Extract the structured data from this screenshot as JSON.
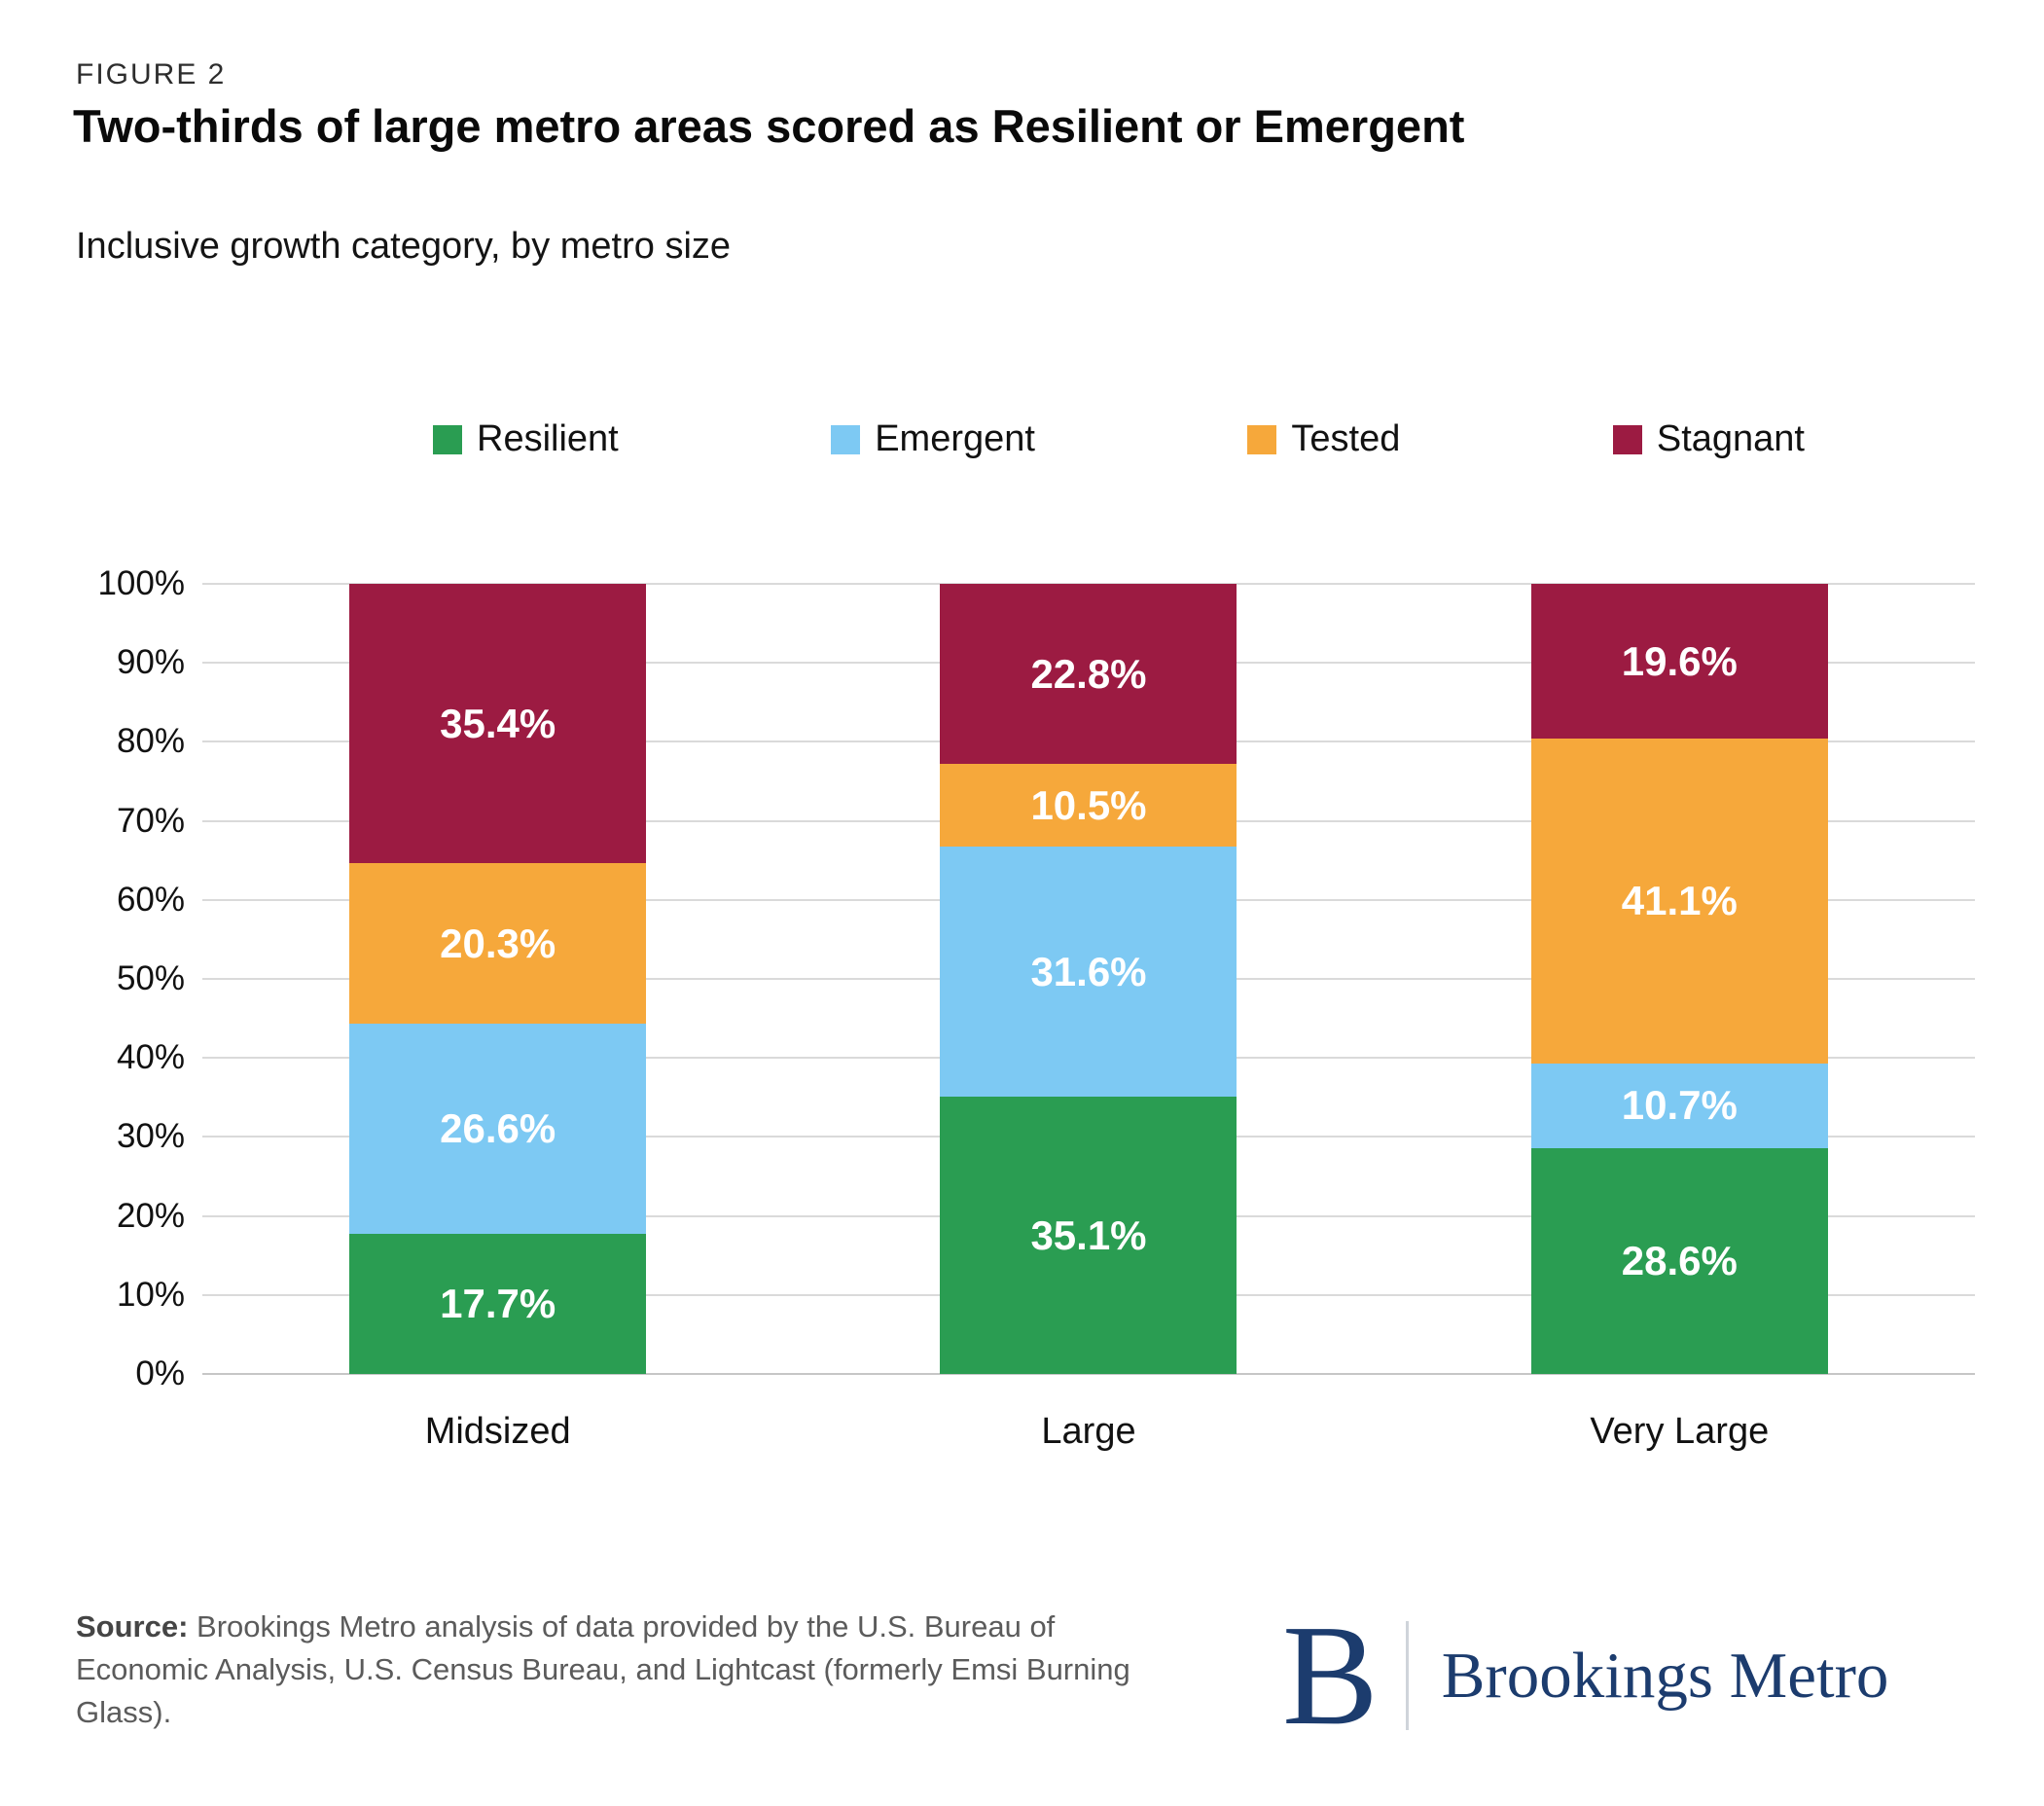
{
  "figure_label": "FIGURE 2",
  "title": "Two-thirds of large metro areas scored as Resilient or Emergent",
  "subtitle": "Inclusive growth category, by metro size",
  "chart_data": {
    "type": "bar",
    "stacked": true,
    "title": "Two-thirds of large metro areas scored as Resilient or Emergent",
    "subtitle": "Inclusive growth category, by metro size",
    "categories": [
      "Midsized",
      "Large",
      "Very Large"
    ],
    "series": [
      {
        "name": "Resilient",
        "color": "#2a9d52",
        "values": [
          17.7,
          35.1,
          28.6
        ]
      },
      {
        "name": "Emergent",
        "color": "#7dc9f3",
        "values": [
          26.6,
          31.6,
          10.7
        ]
      },
      {
        "name": "Tested",
        "color": "#f6a83b",
        "values": [
          20.3,
          10.5,
          41.1
        ]
      },
      {
        "name": "Stagnant",
        "color": "#9c1b42",
        "values": [
          35.4,
          22.8,
          19.6
        ]
      }
    ],
    "y_axis": {
      "min": 0,
      "max": 100,
      "step": 10,
      "tick_suffix": "%"
    },
    "value_label_suffix": "%",
    "grid": true,
    "legend_position": "top"
  },
  "source": {
    "prefix": "Source:",
    "text": " Brookings Metro analysis of data provided by the U.S. Bureau of Economic Analysis, U.S. Census Bureau, and Lightcast (formerly Emsi Burning Glass)."
  },
  "logo": {
    "monogram": "B",
    "wordmark": "Brookings Metro",
    "color": "#1c3c6e"
  }
}
